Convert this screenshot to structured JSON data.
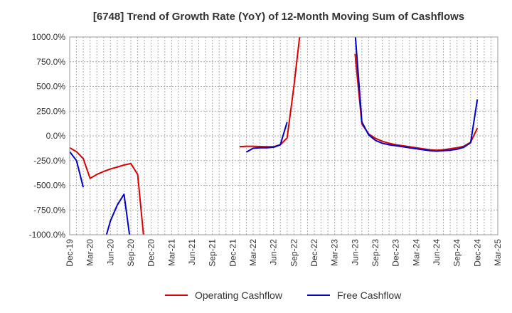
{
  "chart_data": {
    "type": "line",
    "title": "[6748]  Trend of Growth Rate (YoY) of 12-Month Moving Sum of Cashflows",
    "xlabel": "",
    "ylabel": "",
    "ylim": [
      -1000,
      1000
    ],
    "y_ticks": [
      1000,
      750,
      500,
      250,
      0,
      -250,
      -500,
      -750,
      -1000
    ],
    "y_tick_labels": [
      "1000.0%",
      "750.0%",
      "500.0%",
      "250.0%",
      "0.0%",
      "-250.0%",
      "-500.0%",
      "-750.0%",
      "-1000.0%"
    ],
    "x_tick_labels": [
      "Dec-19",
      "Mar-20",
      "Jun-20",
      "Sep-20",
      "Dec-20",
      "Mar-21",
      "Jun-21",
      "Sep-21",
      "Dec-21",
      "Mar-22",
      "Jun-22",
      "Sep-22",
      "Dec-22",
      "Mar-23",
      "Jun-23",
      "Sep-23",
      "Dec-23",
      "Mar-24",
      "Jun-24",
      "Sep-24",
      "Dec-24",
      "Mar-25"
    ],
    "grid": true,
    "legend_position": "bottom",
    "series": [
      {
        "name": "Operating Cashflow",
        "color": "#dd0000",
        "points": [
          [
            "2019-12",
            -120
          ],
          [
            "2020-01",
            -160
          ],
          [
            "2020-02",
            -230
          ],
          [
            "2020-03",
            -430
          ],
          [
            "2020-04",
            -390
          ],
          [
            "2020-05",
            -360
          ],
          [
            "2020-06",
            -335
          ],
          [
            "2020-07",
            -315
          ],
          [
            "2020-08",
            -295
          ],
          [
            "2020-09",
            -280
          ],
          [
            "2020-10",
            -390
          ],
          [
            "2020-11",
            -1100
          ],
          null,
          [
            "2022-01",
            -110
          ],
          [
            "2022-02",
            -105
          ],
          [
            "2022-03",
            -105
          ],
          [
            "2022-04",
            -108
          ],
          [
            "2022-05",
            -110
          ],
          [
            "2022-06",
            -110
          ],
          [
            "2022-07",
            -90
          ],
          [
            "2022-08",
            -20
          ],
          [
            "2022-09",
            500
          ],
          [
            "2022-10",
            1100
          ],
          null,
          [
            "2023-06",
            830
          ],
          [
            "2023-07",
            120
          ],
          [
            "2023-08",
            20
          ],
          [
            "2023-09",
            -25
          ],
          [
            "2023-10",
            -55
          ],
          [
            "2023-11",
            -75
          ],
          [
            "2023-12",
            -90
          ],
          [
            "2024-01",
            -100
          ],
          [
            "2024-02",
            -110
          ],
          [
            "2024-03",
            -120
          ],
          [
            "2024-04",
            -130
          ],
          [
            "2024-05",
            -140
          ],
          [
            "2024-06",
            -145
          ],
          [
            "2024-07",
            -140
          ],
          [
            "2024-08",
            -130
          ],
          [
            "2024-09",
            -120
          ],
          [
            "2024-10",
            -105
          ],
          [
            "2024-11",
            -65
          ],
          [
            "2024-12",
            80
          ]
        ]
      },
      {
        "name": "Free Cashflow",
        "color": "#0000cc",
        "points": [
          [
            "2019-12",
            -160
          ],
          [
            "2020-01",
            -250
          ],
          [
            "2020-02",
            -520
          ],
          null,
          [
            "2020-05",
            -1100
          ],
          [
            "2020-06",
            -860
          ],
          [
            "2020-07",
            -700
          ],
          [
            "2020-08",
            -590
          ],
          [
            "2020-09",
            -1100
          ],
          null,
          [
            "2022-02",
            -165
          ],
          [
            "2022-03",
            -125
          ],
          [
            "2022-04",
            -120
          ],
          [
            "2022-05",
            -120
          ],
          [
            "2022-06",
            -115
          ],
          [
            "2022-07",
            -90
          ],
          [
            "2022-08",
            140
          ],
          null,
          [
            "2023-06",
            1050
          ],
          [
            "2023-07",
            140
          ],
          [
            "2023-08",
            10
          ],
          [
            "2023-09",
            -45
          ],
          [
            "2023-10",
            -75
          ],
          [
            "2023-11",
            -90
          ],
          [
            "2023-12",
            -100
          ],
          [
            "2024-01",
            -110
          ],
          [
            "2024-02",
            -120
          ],
          [
            "2024-03",
            -130
          ],
          [
            "2024-04",
            -140
          ],
          [
            "2024-05",
            -150
          ],
          [
            "2024-06",
            -155
          ],
          [
            "2024-07",
            -150
          ],
          [
            "2024-08",
            -145
          ],
          [
            "2024-09",
            -135
          ],
          [
            "2024-10",
            -115
          ],
          [
            "2024-11",
            -70
          ],
          [
            "2024-12",
            370
          ]
        ]
      }
    ]
  }
}
